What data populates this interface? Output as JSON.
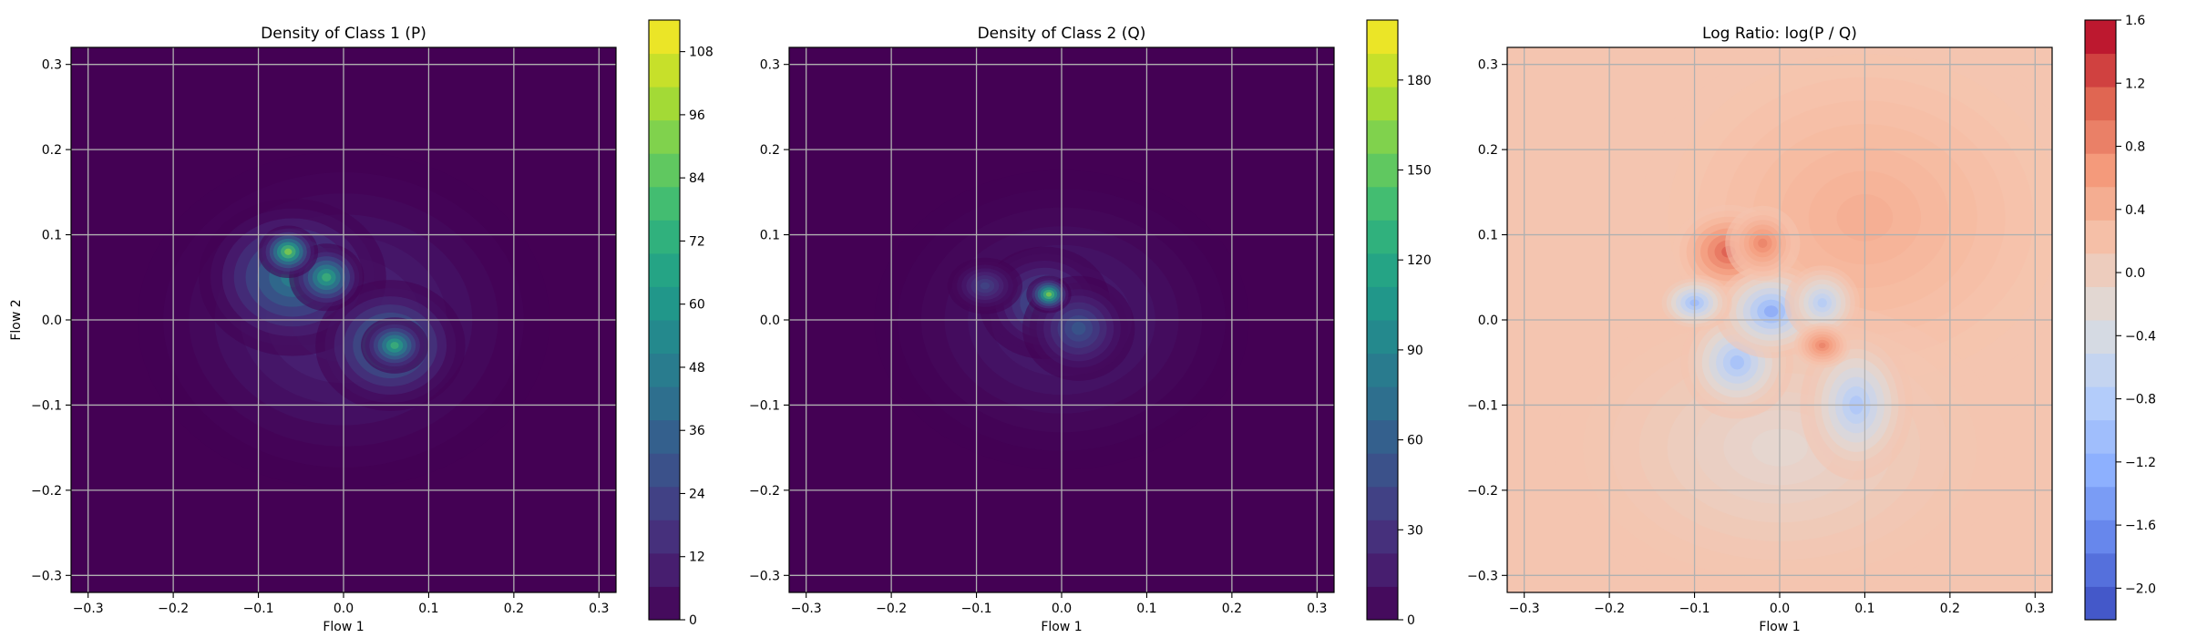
{
  "chart_data": [
    {
      "type": "heatmap",
      "title": "Density of Class 1 (P)",
      "xlabel": "Flow 1",
      "ylabel": "Flow 2",
      "xlim": [
        -0.32,
        0.32
      ],
      "ylim": [
        -0.32,
        0.32
      ],
      "xticks": [
        -0.3,
        -0.2,
        -0.1,
        0.0,
        0.1,
        0.2,
        0.3
      ],
      "yticks": [
        -0.3,
        -0.2,
        -0.1,
        0.0,
        0.1,
        0.2,
        0.3
      ],
      "xtick_labels": [
        "−0.3",
        "−0.2",
        "−0.1",
        "0.0",
        "0.1",
        "0.2",
        "0.3"
      ],
      "ytick_labels": [
        "−0.3",
        "−0.2",
        "−0.1",
        "0.0",
        "0.1",
        "0.2",
        "0.3"
      ],
      "grid": true,
      "colormap": "viridis",
      "colorbar": {
        "min": 0,
        "max": 114,
        "ticks": [
          0,
          12,
          24,
          36,
          48,
          60,
          72,
          84,
          96,
          108
        ],
        "tick_labels": [
          "0",
          "12",
          "24",
          "36",
          "48",
          "60",
          "72",
          "84",
          "96",
          "108"
        ]
      },
      "background_value": 0,
      "blobs": [
        {
          "x": -0.06,
          "y": 0.05,
          "sx": 0.05,
          "sy": 0.042,
          "value": 55
        },
        {
          "x": -0.065,
          "y": 0.08,
          "sx": 0.016,
          "sy": 0.014,
          "value": 98
        },
        {
          "x": -0.02,
          "y": 0.05,
          "sx": 0.02,
          "sy": 0.018,
          "value": 80
        },
        {
          "x": 0.055,
          "y": -0.03,
          "sx": 0.04,
          "sy": 0.035,
          "value": 60
        },
        {
          "x": 0.06,
          "y": -0.03,
          "sx": 0.018,
          "sy": 0.015,
          "value": 80
        },
        {
          "x": 0.0,
          "y": 0.0,
          "sx": 0.11,
          "sy": 0.09,
          "value": 18
        }
      ]
    },
    {
      "type": "heatmap",
      "title": "Density of Class 2 (Q)",
      "xlabel": "Flow 1",
      "ylabel": "",
      "xlim": [
        -0.32,
        0.32
      ],
      "ylim": [
        -0.32,
        0.32
      ],
      "xticks": [
        -0.3,
        -0.2,
        -0.1,
        0.0,
        0.1,
        0.2,
        0.3
      ],
      "yticks": [
        -0.3,
        -0.2,
        -0.1,
        0.0,
        0.1,
        0.2,
        0.3
      ],
      "xtick_labels": [
        "−0.3",
        "−0.2",
        "−0.1",
        "0.0",
        "0.1",
        "0.2",
        "0.3"
      ],
      "ytick_labels": [
        "−0.3",
        "−0.2",
        "−0.1",
        "0.0",
        "0.1",
        "0.2",
        "0.3"
      ],
      "grid": true,
      "colormap": "viridis",
      "colorbar": {
        "min": 0,
        "max": 200,
        "ticks": [
          0,
          30,
          60,
          90,
          120,
          150,
          180
        ],
        "tick_labels": [
          "0",
          "30",
          "60",
          "90",
          "120",
          "150",
          "180"
        ]
      },
      "background_value": 0,
      "blobs": [
        {
          "x": -0.015,
          "y": 0.03,
          "sx": 0.012,
          "sy": 0.01,
          "value": 170
        },
        {
          "x": -0.02,
          "y": 0.02,
          "sx": 0.035,
          "sy": 0.03,
          "value": 70
        },
        {
          "x": 0.02,
          "y": -0.01,
          "sx": 0.03,
          "sy": 0.028,
          "value": 60
        },
        {
          "x": -0.09,
          "y": 0.04,
          "sx": 0.02,
          "sy": 0.015,
          "value": 45
        },
        {
          "x": 0.0,
          "y": 0.0,
          "sx": 0.1,
          "sy": 0.08,
          "value": 25
        }
      ]
    },
    {
      "type": "heatmap",
      "title": "Log Ratio: log(P / Q)",
      "xlabel": "Flow 1",
      "ylabel": "",
      "xlim": [
        -0.32,
        0.32
      ],
      "ylim": [
        -0.32,
        0.32
      ],
      "xticks": [
        -0.3,
        -0.2,
        -0.1,
        0.0,
        0.1,
        0.2,
        0.3
      ],
      "yticks": [
        -0.3,
        -0.2,
        -0.1,
        0.0,
        0.1,
        0.2,
        0.3
      ],
      "xtick_labels": [
        "−0.3",
        "−0.2",
        "−0.1",
        "0.0",
        "0.1",
        "0.2",
        "0.3"
      ],
      "ytick_labels": [
        "−0.3",
        "−0.2",
        "−0.1",
        "0.0",
        "0.1",
        "0.2",
        "0.3"
      ],
      "grid": true,
      "colormap": "coolwarm",
      "colorbar": {
        "min": -2.2,
        "max": 1.6,
        "ticks": [
          -2.0,
          -1.6,
          -1.2,
          -0.8,
          -0.4,
          0.0,
          0.4,
          0.8,
          1.2,
          1.6
        ],
        "tick_labels": [
          "−2.0",
          "−1.6",
          "−1.2",
          "−0.8",
          "−0.4",
          "0.0",
          "0.4",
          "0.8",
          "1.2",
          "1.6"
        ]
      },
      "background_value": 0.15,
      "blobs": [
        {
          "x": 0.1,
          "y": 0.12,
          "sx": 0.12,
          "sy": 0.1,
          "value": 0.45
        },
        {
          "x": -0.06,
          "y": 0.08,
          "sx": 0.03,
          "sy": 0.025,
          "value": 1.2
        },
        {
          "x": -0.02,
          "y": 0.09,
          "sx": 0.02,
          "sy": 0.02,
          "value": 0.9
        },
        {
          "x": 0.05,
          "y": -0.03,
          "sx": 0.015,
          "sy": 0.012,
          "value": 0.9
        },
        {
          "x": -0.1,
          "y": 0.02,
          "sx": 0.02,
          "sy": 0.015,
          "value": -1.2
        },
        {
          "x": -0.01,
          "y": 0.01,
          "sx": 0.03,
          "sy": 0.025,
          "value": -1.4
        },
        {
          "x": -0.05,
          "y": -0.05,
          "sx": 0.03,
          "sy": 0.03,
          "value": -1.1
        },
        {
          "x": 0.09,
          "y": -0.1,
          "sx": 0.03,
          "sy": 0.04,
          "value": -1.0
        },
        {
          "x": 0.05,
          "y": 0.02,
          "sx": 0.02,
          "sy": 0.02,
          "value": -0.9
        },
        {
          "x": 0.0,
          "y": -0.15,
          "sx": 0.12,
          "sy": 0.08,
          "value": -0.2
        }
      ]
    }
  ]
}
